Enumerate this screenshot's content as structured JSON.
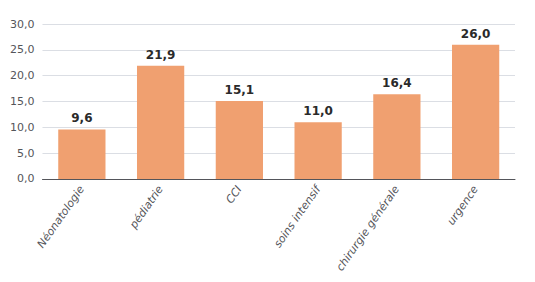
{
  "chart_data": {
    "type": "bar",
    "categories": [
      "Néonatologie",
      "pédiatrie",
      "CCI",
      "soins intensif",
      "chirurgie générale",
      "urgence"
    ],
    "values": [
      9.6,
      21.9,
      15.1,
      11.0,
      16.4,
      26.0
    ],
    "value_labels": [
      "9,6",
      "21,9",
      "15,1",
      "11,0",
      "16,4",
      "26,0"
    ],
    "data_labels": true,
    "color": "#F0A070",
    "ylim": [
      0,
      30
    ],
    "yticks": [
      {
        "value": 0.0,
        "label": "0,0"
      },
      {
        "value": 5.0,
        "label": "5,0"
      },
      {
        "value": 10.0,
        "label": "10,0"
      },
      {
        "value": 15.0,
        "label": "15,0"
      },
      {
        "value": 20.0,
        "label": "20,0"
      },
      {
        "value": 25.0,
        "label": "25,0"
      },
      {
        "value": 30.0,
        "label": "30,0"
      }
    ],
    "grid": true
  }
}
